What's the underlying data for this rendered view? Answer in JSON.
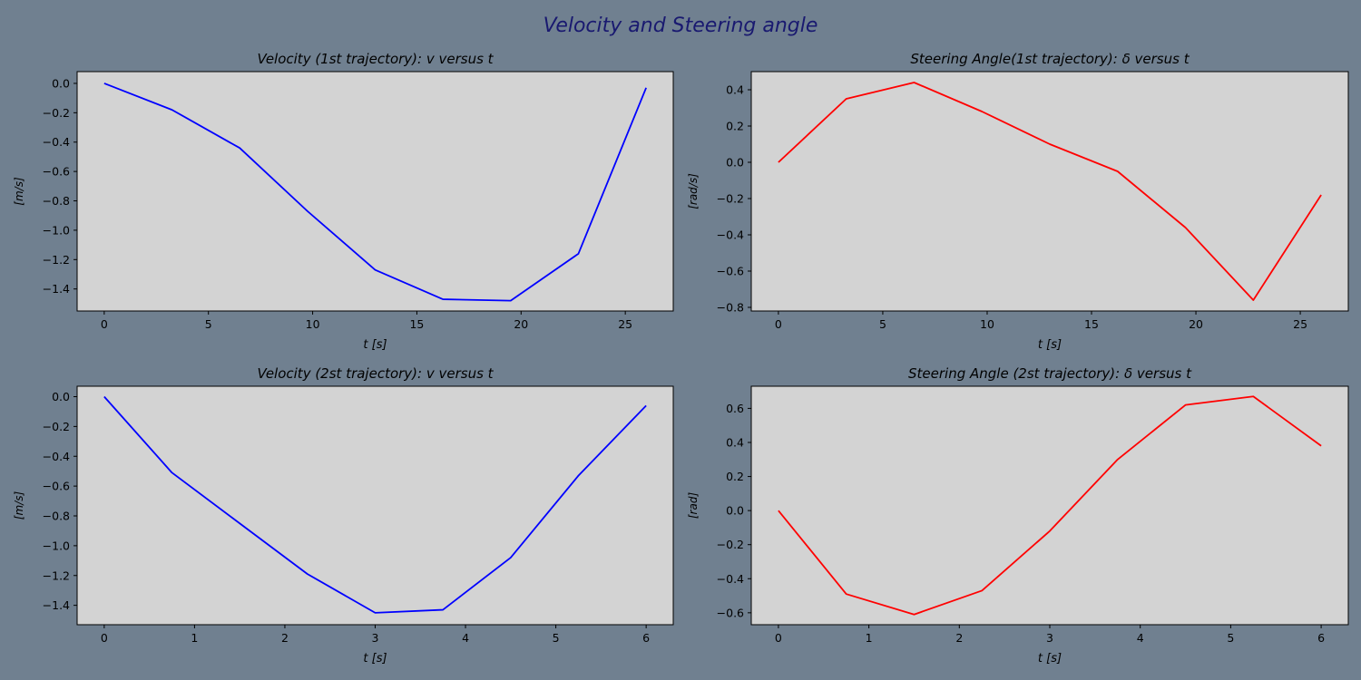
{
  "figure": {
    "title": "Velocity and Steering angle",
    "title_color": "#191970",
    "background": "#708090",
    "axes_background": "#D3D3D3"
  },
  "chart_data": [
    {
      "type": "line",
      "title": "Velocity (1st trajectory): v versus t",
      "xlabel": "t [s]",
      "ylabel": "[m/s]",
      "xlim": [
        -1.3,
        27.3
      ],
      "ylim": [
        -1.55,
        0.08
      ],
      "xticks": [
        0,
        5,
        10,
        15,
        20,
        25
      ],
      "yticks": [
        0.0,
        -0.2,
        -0.4,
        -0.6,
        -0.8,
        -1.0,
        -1.2,
        -1.4
      ],
      "grid": false,
      "series": [
        {
          "color": "#0000FF",
          "x": [
            0,
            3.25,
            6.5,
            9.75,
            13.0,
            16.25,
            19.5,
            22.75,
            26.0
          ],
          "y": [
            0.0,
            -0.18,
            -0.44,
            -0.87,
            -1.27,
            -1.47,
            -1.48,
            -1.16,
            -0.03
          ]
        }
      ]
    },
    {
      "type": "line",
      "title": "Steering Angle(1st trajectory): δ versus t",
      "xlabel": "t [s]",
      "ylabel": "[rad/s]",
      "xlim": [
        -1.3,
        27.3
      ],
      "ylim": [
        -0.82,
        0.5
      ],
      "xticks": [
        0,
        5,
        10,
        15,
        20,
        25
      ],
      "yticks": [
        0.4,
        0.2,
        0.0,
        -0.2,
        -0.4,
        -0.6,
        -0.8
      ],
      "grid": false,
      "series": [
        {
          "color": "#FF0000",
          "x": [
            0,
            3.25,
            6.5,
            9.75,
            13.0,
            16.25,
            19.5,
            22.75,
            26.0
          ],
          "y": [
            0.0,
            0.35,
            0.44,
            0.28,
            0.1,
            -0.05,
            -0.36,
            -0.76,
            -0.18
          ]
        }
      ]
    },
    {
      "type": "line",
      "title": "Velocity (2st trajectory): v versus t",
      "xlabel": "t [s]",
      "ylabel": "[m/s]",
      "xlim": [
        -0.3,
        6.3
      ],
      "ylim": [
        -1.53,
        0.07
      ],
      "xticks": [
        0,
        1,
        2,
        3,
        4,
        5,
        6
      ],
      "yticks": [
        0.0,
        -0.2,
        -0.4,
        -0.6,
        -0.8,
        -1.0,
        -1.2,
        -1.4
      ],
      "grid": false,
      "series": [
        {
          "color": "#0000FF",
          "x": [
            0,
            0.75,
            1.5,
            2.25,
            3.0,
            3.75,
            4.5,
            5.25,
            6.0
          ],
          "y": [
            0.0,
            -0.51,
            -0.85,
            -1.19,
            -1.45,
            -1.43,
            -1.08,
            -0.53,
            -0.06
          ]
        }
      ]
    },
    {
      "type": "line",
      "title": "Steering Angle (2st trajectory): δ versus t",
      "xlabel": "t [s]",
      "ylabel": "[rad]",
      "xlim": [
        -0.3,
        6.3
      ],
      "ylim": [
        -0.67,
        0.73
      ],
      "xticks": [
        0,
        1,
        2,
        3,
        4,
        5,
        6
      ],
      "yticks": [
        0.6,
        0.4,
        0.2,
        0.0,
        -0.2,
        -0.4,
        -0.6
      ],
      "grid": false,
      "series": [
        {
          "color": "#FF0000",
          "x": [
            0,
            0.75,
            1.5,
            2.25,
            3.0,
            3.75,
            4.5,
            5.25,
            6.0
          ],
          "y": [
            0.0,
            -0.49,
            -0.61,
            -0.47,
            -0.12,
            0.3,
            0.62,
            0.67,
            0.38
          ]
        }
      ]
    }
  ]
}
